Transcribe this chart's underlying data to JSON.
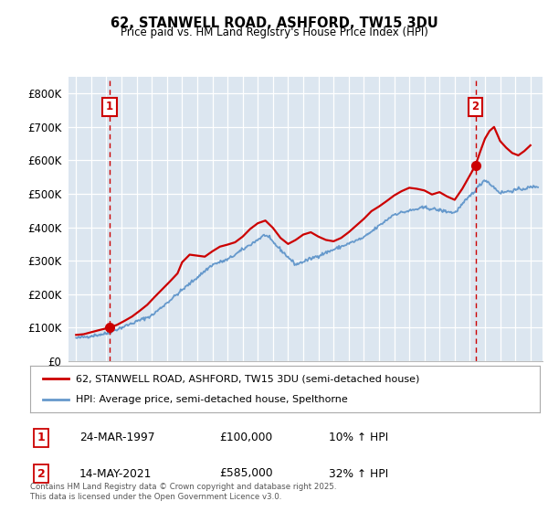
{
  "title_line1": "62, STANWELL ROAD, ASHFORD, TW15 3DU",
  "title_line2": "Price paid vs. HM Land Registry's House Price Index (HPI)",
  "plot_bg_color": "#dce6f0",
  "legend_line1": "62, STANWELL ROAD, ASHFORD, TW15 3DU (semi-detached house)",
  "legend_line2": "HPI: Average price, semi-detached house, Spelthorne",
  "annotation1_date": "24-MAR-1997",
  "annotation1_price": "£100,000",
  "annotation1_hpi": "10% ↑ HPI",
  "annotation1_year": 1997.22,
  "annotation1_value": 100000,
  "annotation2_date": "14-MAY-2021",
  "annotation2_price": "£585,000",
  "annotation2_hpi": "32% ↑ HPI",
  "annotation2_year": 2021.37,
  "annotation2_value": 585000,
  "footer": "Contains HM Land Registry data © Crown copyright and database right 2025.\nThis data is licensed under the Open Government Licence v3.0.",
  "red_color": "#cc0000",
  "blue_color": "#6699cc",
  "ylim_max": 850000,
  "xlim_min": 1994.5,
  "xlim_max": 2025.8,
  "yticks": [
    0,
    100000,
    200000,
    300000,
    400000,
    500000,
    600000,
    700000,
    800000
  ],
  "ylabels": [
    "£0",
    "£100K",
    "£200K",
    "£300K",
    "£400K",
    "£500K",
    "£600K",
    "£700K",
    "£800K"
  ],
  "xtick_start": 1995,
  "xtick_end": 2025
}
